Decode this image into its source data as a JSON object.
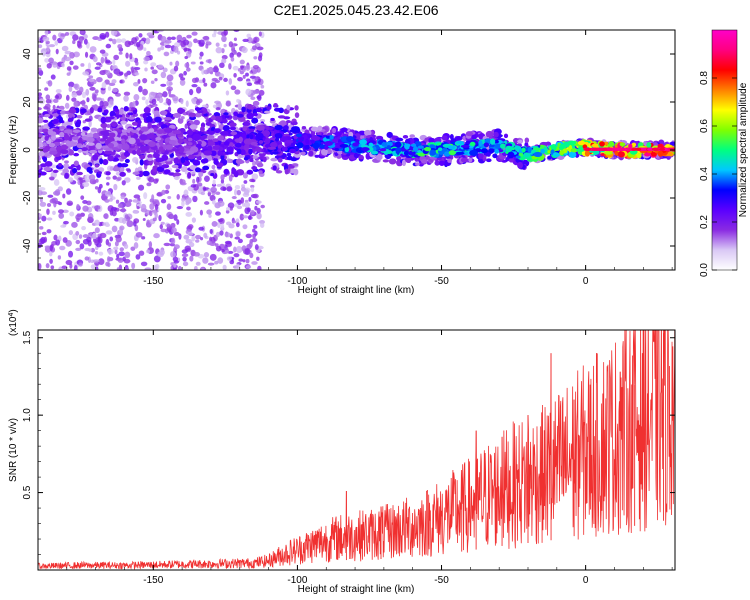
{
  "page_title": "C2E1.2025.045.23.42.E06",
  "chart_data": [
    {
      "type": "heatmap",
      "title": "C2E1.2025.045.23.42.E06",
      "xlabel": "Height of straight line (km)",
      "ylabel": "Frequency (Hz)",
      "xlim": [
        -190,
        31
      ],
      "ylim": [
        -50,
        50
      ],
      "xticks": [
        -150,
        -100,
        -50,
        0
      ],
      "yticks": [
        -40,
        -20,
        0,
        20,
        40
      ],
      "colorbar": {
        "label": "Normalized spectral amplitude",
        "range": [
          0,
          1
        ],
        "ticks": [
          0.0,
          0.2,
          0.4,
          0.6,
          0.8
        ],
        "tick_labels": [
          "0.0",
          "0.2",
          "0.4",
          "0.6",
          "0.8"
        ],
        "colors": [
          "#ffffff",
          "#d9c8f5",
          "#8a2be2",
          "#5a00ff",
          "#0000ff",
          "#00c8ff",
          "#00ff80",
          "#80ff00",
          "#ffff00",
          "#ff8000",
          "#ff0000",
          "#ff0080",
          "#ff00c8"
        ]
      },
      "ridge": {
        "description_points": [
          {
            "x": -190,
            "y": 3,
            "amp": 0.18
          },
          {
            "x": -150,
            "y": 4,
            "amp": 0.2
          },
          {
            "x": -130,
            "y": 3,
            "amp": 0.25
          },
          {
            "x": -110,
            "y": 5,
            "amp": 0.3
          },
          {
            "x": -100,
            "y": 4,
            "amp": 0.35
          },
          {
            "x": -90,
            "y": 3,
            "amp": 0.4
          },
          {
            "x": -80,
            "y": 2,
            "amp": 0.42
          },
          {
            "x": -70,
            "y": 1,
            "amp": 0.45
          },
          {
            "x": -60,
            "y": 0,
            "amp": 0.5
          },
          {
            "x": -50,
            "y": 0,
            "amp": 0.55
          },
          {
            "x": -40,
            "y": 1,
            "amp": 0.5
          },
          {
            "x": -30,
            "y": 2,
            "amp": 0.45
          },
          {
            "x": -20,
            "y": -2,
            "amp": 0.55
          },
          {
            "x": -10,
            "y": 0,
            "amp": 0.6
          },
          {
            "x": 0,
            "y": 1,
            "amp": 0.8
          },
          {
            "x": 10,
            "y": 0,
            "amp": 0.9
          },
          {
            "x": 20,
            "y": 0,
            "amp": 0.9
          },
          {
            "x": 31,
            "y": 0,
            "amp": 0.85
          }
        ]
      }
    },
    {
      "type": "line",
      "xlabel": "Height of straight line (km)",
      "ylabel": "SNR (10 * v/v)",
      "y_multiplier_label": "(x10",
      "y_multiplier_exp": "4",
      "y_multiplier_close": ")",
      "xlim": [
        -190,
        31
      ],
      "ylim": [
        0,
        15500
      ],
      "xticks": [
        -150,
        -100,
        -50,
        0
      ],
      "yticks": [
        5000,
        10000,
        15000
      ],
      "ytick_labels": [
        "0.5",
        "1.0",
        "1.5"
      ],
      "series": [
        {
          "color": "#f03030",
          "x": [
            -190,
            -175,
            -160,
            -145,
            -130,
            -115,
            -110,
            -105,
            -100,
            -95,
            -90,
            -85,
            -80,
            -75,
            -70,
            -65,
            -60,
            -55,
            -50,
            -45,
            -40,
            -35,
            -30,
            -25,
            -20,
            -15,
            -10,
            -5,
            0,
            5,
            10,
            15,
            20,
            25,
            31
          ],
          "y": [
            250,
            300,
            300,
            350,
            400,
            450,
            600,
            1000,
            1300,
            1600,
            1900,
            2100,
            2200,
            2300,
            2400,
            2600,
            2800,
            3100,
            3400,
            3800,
            4200,
            4700,
            5100,
            5500,
            5800,
            6100,
            6600,
            7200,
            7700,
            8200,
            8700,
            9300,
            9800,
            10400,
            11000
          ],
          "spikes": [
            {
              "x": -83,
              "y": 5100
            },
            {
              "x": -71,
              "y": 4100
            },
            {
              "x": -43,
              "y": 5700
            },
            {
              "x": -38,
              "y": 9000
            },
            {
              "x": -29,
              "y": 8600
            },
            {
              "x": -20,
              "y": 10000
            },
            {
              "x": -12,
              "y": 14000
            },
            {
              "x": -4,
              "y": 11000
            },
            {
              "x": 12,
              "y": 12800
            },
            {
              "x": 17,
              "y": 12000
            },
            {
              "x": 27,
              "y": 15300
            }
          ]
        }
      ]
    }
  ]
}
